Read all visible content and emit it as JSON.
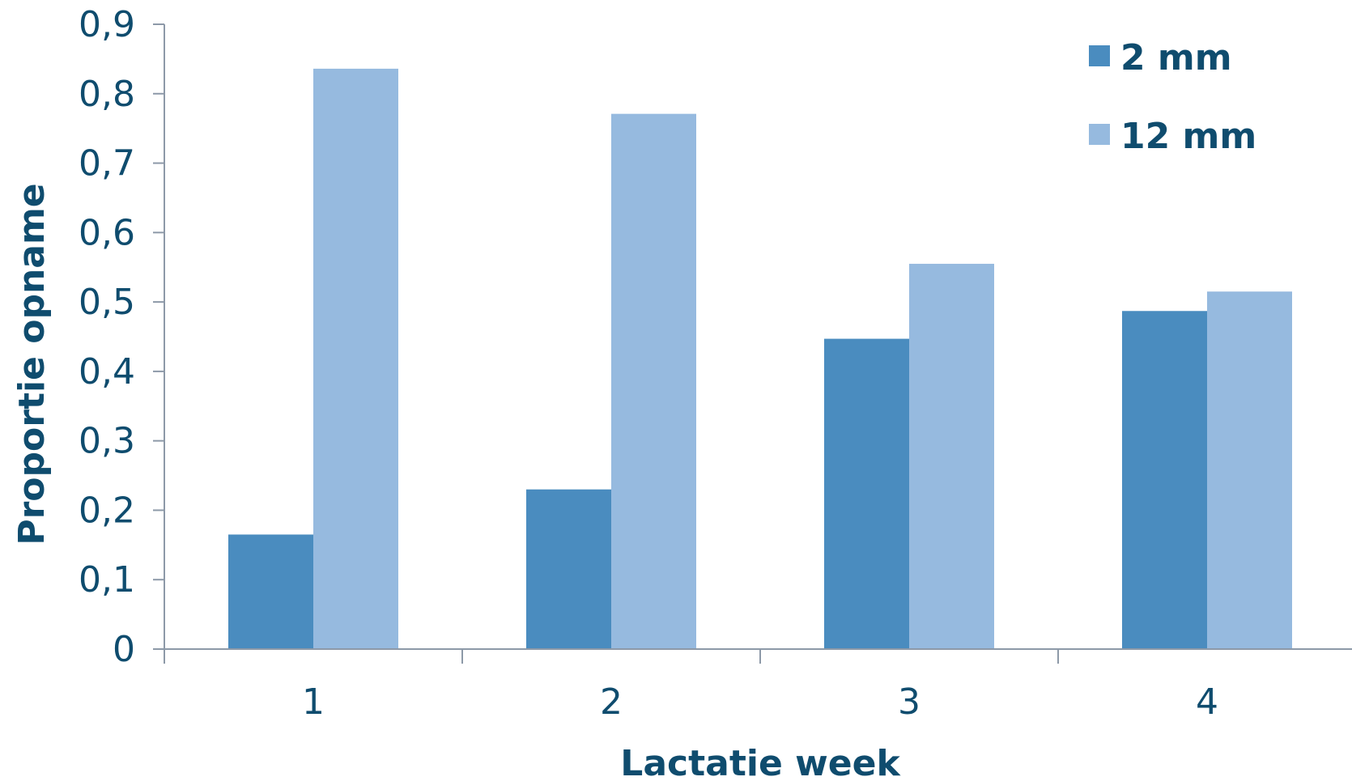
{
  "chart_data": {
    "type": "bar",
    "title": "",
    "xlabel": "Lactatie week",
    "ylabel": "Proportie opname",
    "categories": [
      "1",
      "2",
      "3",
      "4"
    ],
    "series": [
      {
        "name": "2 mm",
        "values": [
          0.165,
          0.23,
          0.447,
          0.487
        ],
        "color": "#4a8cbf"
      },
      {
        "name": "12 mm",
        "values": [
          0.836,
          0.771,
          0.555,
          0.515
        ],
        "color": "#96badf"
      }
    ],
    "ylim": [
      0,
      0.9
    ],
    "yticks": [
      0,
      0.1,
      0.2,
      0.3,
      0.4,
      0.5,
      0.6,
      0.7,
      0.8,
      0.9
    ],
    "ytick_labels": [
      "0",
      "0,1",
      "0,2",
      "0,3",
      "0,4",
      "0,5",
      "0,6",
      "0,7",
      "0,8",
      "0,9"
    ],
    "grid": false,
    "legend": "top-right",
    "colors": {
      "text": "#0f4c6e",
      "axis": "#8d99a8"
    }
  }
}
